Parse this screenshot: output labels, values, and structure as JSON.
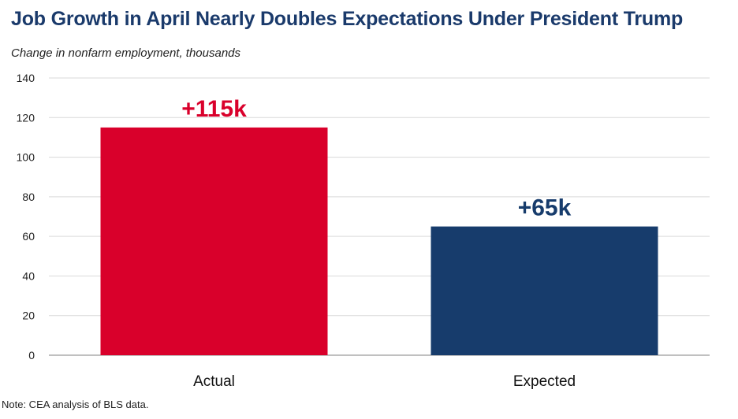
{
  "chart_data": {
    "type": "bar",
    "title": "Job Growth in April Nearly Doubles Expectations Under President Trump",
    "subtitle": "Change in nonfarm employment, thousands",
    "note": "Note: CEA analysis of BLS data.",
    "categories": [
      "Actual",
      "Expected"
    ],
    "values": [
      115,
      65
    ],
    "data_labels": [
      "+115k",
      "+65k"
    ],
    "bar_colors": [
      "#d9002b",
      "#173c6c"
    ],
    "label_colors": [
      "#d9002b",
      "#173c6c"
    ],
    "ylim": [
      0,
      140
    ],
    "yticks": [
      0,
      20,
      40,
      60,
      80,
      100,
      120,
      140
    ],
    "grid": true,
    "legend": "none"
  }
}
